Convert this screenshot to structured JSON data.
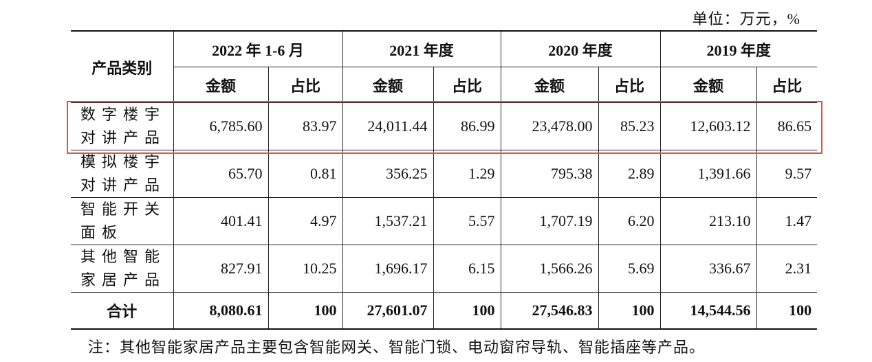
{
  "unit": "单位：万元，%",
  "table": {
    "header": {
      "category": "产品类别",
      "periods": [
        "2022 年 1-6 月",
        "2021 年度",
        "2020 年度",
        "2019 年度"
      ],
      "sub": [
        "金额",
        "占比"
      ]
    },
    "rows": [
      {
        "category": "数字楼宇对讲产品",
        "values": [
          "6,785.60",
          "83.97",
          "24,011.44",
          "86.99",
          "23,478.00",
          "85.23",
          "12,603.12",
          "86.65"
        ]
      },
      {
        "category": "模拟楼宇对讲产品",
        "values": [
          "65.70",
          "0.81",
          "356.25",
          "1.29",
          "795.38",
          "2.89",
          "1,391.66",
          "9.57"
        ]
      },
      {
        "category": "智能开关面板",
        "values": [
          "401.41",
          "4.97",
          "1,537.21",
          "5.57",
          "1,707.19",
          "6.20",
          "213.10",
          "1.47"
        ]
      },
      {
        "category": "其他智能家居产品",
        "values": [
          "827.91",
          "10.25",
          "1,696.17",
          "6.15",
          "1,566.26",
          "5.69",
          "336.67",
          "2.31"
        ]
      }
    ],
    "total": {
      "category": "合计",
      "values": [
        "8,080.61",
        "100",
        "27,601.07",
        "100",
        "27,546.83",
        "100",
        "14,544.56",
        "100"
      ]
    }
  },
  "note": "注：其他智能家居产品主要包含智能网关、智能门锁、电动窗帘导轨、智能插座等产品。"
}
